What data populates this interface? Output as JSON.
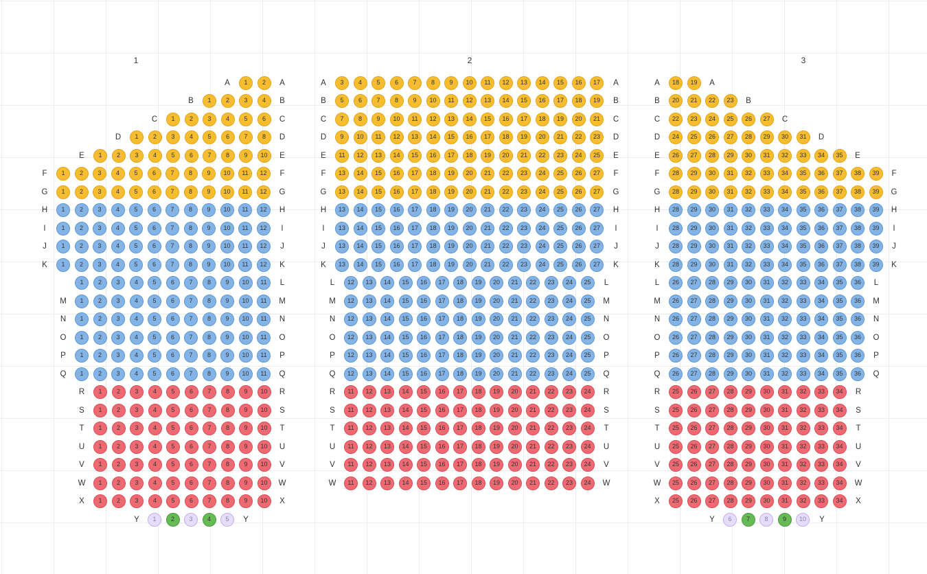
{
  "legend": {
    "gold": "#f5bd2f",
    "blue": "#84b4e6",
    "red": "#ee6a72",
    "green": "#66bb55",
    "violet": "#e6dcfb"
  },
  "sections": [
    {
      "title": "1",
      "rows": [
        {
          "label": "A",
          "status": "gold",
          "from": 1,
          "to": 2
        },
        {
          "label": "B",
          "status": "gold",
          "from": 1,
          "to": 4
        },
        {
          "label": "C",
          "status": "gold",
          "from": 1,
          "to": 6
        },
        {
          "label": "D",
          "status": "gold",
          "from": 1,
          "to": 8
        },
        {
          "label": "E",
          "status": "gold",
          "from": 1,
          "to": 10
        },
        {
          "label": "F",
          "status": "gold",
          "from": 1,
          "to": 12
        },
        {
          "label": "G",
          "status": "gold",
          "from": 1,
          "to": 12
        },
        {
          "label": "H",
          "status": "blue",
          "from": 1,
          "to": 12
        },
        {
          "label": "I",
          "status": "blue",
          "from": 1,
          "to": 12
        },
        {
          "label": "J",
          "status": "blue",
          "from": 1,
          "to": 12
        },
        {
          "label": "K",
          "status": "blue",
          "from": 1,
          "to": 12
        },
        {
          "label": "L",
          "status": "blue",
          "from": 1,
          "to": 11
        },
        {
          "label": "M",
          "status": "blue",
          "from": 1,
          "to": 11
        },
        {
          "label": "N",
          "status": "blue",
          "from": 1,
          "to": 11
        },
        {
          "label": "O",
          "status": "blue",
          "from": 1,
          "to": 11
        },
        {
          "label": "P",
          "status": "blue",
          "from": 1,
          "to": 11
        },
        {
          "label": "Q",
          "status": "blue",
          "from": 1,
          "to": 11
        },
        {
          "label": "R",
          "status": "red",
          "from": 1,
          "to": 10
        },
        {
          "label": "S",
          "status": "red",
          "from": 1,
          "to": 10
        },
        {
          "label": "T",
          "status": "red",
          "from": 1,
          "to": 10
        },
        {
          "label": "U",
          "status": "red",
          "from": 1,
          "to": 10
        },
        {
          "label": "V",
          "status": "red",
          "from": 1,
          "to": 10
        },
        {
          "label": "W",
          "status": "red",
          "from": 1,
          "to": 10
        },
        {
          "label": "X",
          "status": "red",
          "from": 1,
          "to": 10
        },
        {
          "label": "Y",
          "seats": [
            {
              "n": "1",
              "status": "violet"
            },
            {
              "n": "2",
              "status": "green"
            },
            {
              "n": "3",
              "status": "violet"
            },
            {
              "n": "4",
              "status": "green"
            },
            {
              "n": "5",
              "status": "violet"
            }
          ]
        }
      ]
    },
    {
      "title": "2",
      "rows": [
        {
          "label": "A",
          "status": "gold",
          "from": 3,
          "to": 17
        },
        {
          "label": "B",
          "status": "gold",
          "from": 5,
          "to": 19
        },
        {
          "label": "C",
          "status": "gold",
          "from": 7,
          "to": 21
        },
        {
          "label": "D",
          "status": "gold",
          "from": 9,
          "to": 23
        },
        {
          "label": "E",
          "status": "gold",
          "from": 11,
          "to": 25
        },
        {
          "label": "F",
          "status": "gold",
          "from": 13,
          "to": 27
        },
        {
          "label": "G",
          "status": "gold",
          "from": 13,
          "to": 27
        },
        {
          "label": "H",
          "status": "blue",
          "from": 13,
          "to": 27
        },
        {
          "label": "I",
          "status": "blue",
          "from": 13,
          "to": 27
        },
        {
          "label": "J",
          "status": "blue",
          "from": 13,
          "to": 27
        },
        {
          "label": "K",
          "status": "blue",
          "from": 13,
          "to": 27
        },
        {
          "label": "L",
          "status": "blue",
          "from": 12,
          "to": 25
        },
        {
          "label": "M",
          "status": "blue",
          "from": 12,
          "to": 25
        },
        {
          "label": "N",
          "status": "blue",
          "from": 12,
          "to": 25
        },
        {
          "label": "O",
          "status": "blue",
          "from": 12,
          "to": 25
        },
        {
          "label": "P",
          "status": "blue",
          "from": 12,
          "to": 25
        },
        {
          "label": "Q",
          "status": "blue",
          "from": 12,
          "to": 25
        },
        {
          "label": "R",
          "status": "red",
          "from": 11,
          "to": 24
        },
        {
          "label": "S",
          "status": "red",
          "from": 11,
          "to": 24
        },
        {
          "label": "T",
          "status": "red",
          "from": 11,
          "to": 24
        },
        {
          "label": "U",
          "status": "red",
          "from": 11,
          "to": 24
        },
        {
          "label": "V",
          "status": "red",
          "from": 11,
          "to": 24
        },
        {
          "label": "W",
          "status": "red",
          "from": 11,
          "to": 24
        }
      ]
    },
    {
      "title": "3",
      "rows": [
        {
          "label": "A",
          "status": "gold",
          "from": 18,
          "to": 19
        },
        {
          "label": "B",
          "status": "gold",
          "from": 20,
          "to": 23
        },
        {
          "label": "C",
          "status": "gold",
          "from": 22,
          "to": 27
        },
        {
          "label": "D",
          "status": "gold",
          "from": 24,
          "to": 31
        },
        {
          "label": "E",
          "status": "gold",
          "from": 26,
          "to": 35
        },
        {
          "label": "F",
          "status": "gold",
          "from": 28,
          "to": 39
        },
        {
          "label": "G",
          "status": "gold",
          "from": 28,
          "to": 39
        },
        {
          "label": "H",
          "status": "blue",
          "from": 28,
          "to": 39
        },
        {
          "label": "I",
          "status": "blue",
          "from": 28,
          "to": 39
        },
        {
          "label": "J",
          "status": "blue",
          "from": 28,
          "to": 39
        },
        {
          "label": "K",
          "status": "blue",
          "from": 28,
          "to": 39
        },
        {
          "label": "L",
          "status": "blue",
          "from": 26,
          "to": 36
        },
        {
          "label": "M",
          "status": "blue",
          "from": 26,
          "to": 36
        },
        {
          "label": "N",
          "status": "blue",
          "from": 26,
          "to": 36
        },
        {
          "label": "O",
          "status": "blue",
          "from": 26,
          "to": 36
        },
        {
          "label": "P",
          "status": "blue",
          "from": 26,
          "to": 36
        },
        {
          "label": "Q",
          "status": "blue",
          "from": 26,
          "to": 36
        },
        {
          "label": "R",
          "status": "red",
          "from": 25,
          "to": 34
        },
        {
          "label": "S",
          "status": "red",
          "from": 25,
          "to": 34
        },
        {
          "label": "T",
          "status": "red",
          "from": 25,
          "to": 34
        },
        {
          "label": "U",
          "status": "red",
          "from": 25,
          "to": 34
        },
        {
          "label": "V",
          "status": "red",
          "from": 25,
          "to": 34
        },
        {
          "label": "W",
          "status": "red",
          "from": 25,
          "to": 34
        },
        {
          "label": "X",
          "status": "red",
          "from": 25,
          "to": 34
        },
        {
          "label": "Y",
          "seats": [
            {
              "n": "6",
              "status": "violet"
            },
            {
              "n": "7",
              "status": "green"
            },
            {
              "n": "8",
              "status": "violet"
            },
            {
              "n": "9",
              "status": "green"
            },
            {
              "n": "10",
              "status": "violet"
            }
          ]
        }
      ]
    }
  ]
}
